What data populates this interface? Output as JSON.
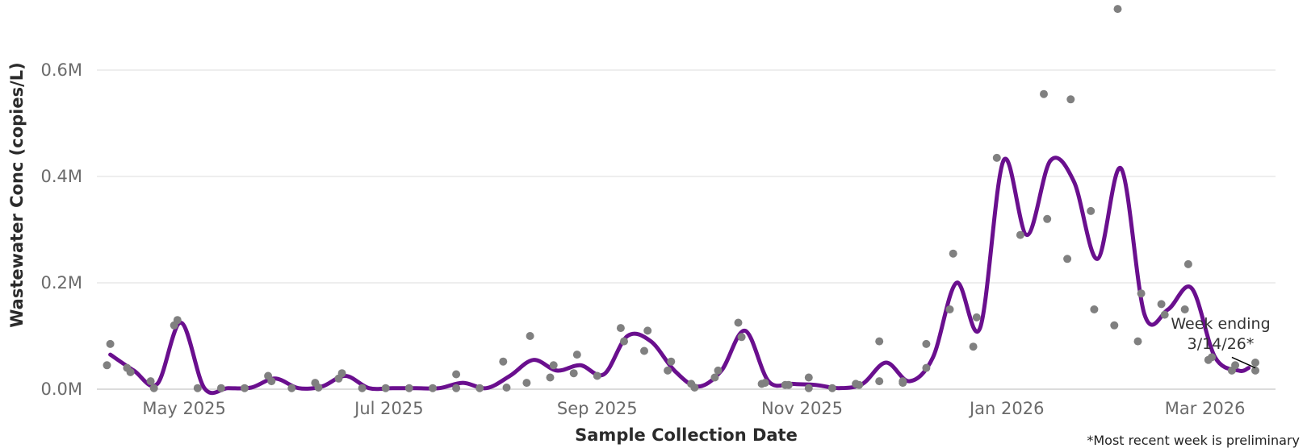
{
  "chart_data": {
    "type": "line",
    "xlabel": "Sample Collection Date",
    "ylabel": "Wastewater Conc (copies/L)",
    "ylim": [
      0,
      700000
    ],
    "xlim": [
      "2025-04-05",
      "2026-03-22"
    ],
    "y_ticks": [
      {
        "value": 0,
        "label": "0.0M"
      },
      {
        "value": 200000,
        "label": "0.2M"
      },
      {
        "value": 400000,
        "label": "0.4M"
      },
      {
        "value": 600000,
        "label": "0.6M"
      }
    ],
    "x_ticks": [
      {
        "date": "2025-05-01",
        "label": "May 2025"
      },
      {
        "date": "2025-07-01",
        "label": "Jul 2025"
      },
      {
        "date": "2025-09-01",
        "label": "Sep 2025"
      },
      {
        "date": "2025-11-01",
        "label": "Nov 2025"
      },
      {
        "date": "2026-01-01",
        "label": "Jan 2026"
      },
      {
        "date": "2026-03-01",
        "label": "Mar 2026"
      }
    ],
    "grid": "horizontal",
    "colors": {
      "line": "#6a0f8e",
      "points": "#808080",
      "grid": "#e8e8e8"
    },
    "series": [
      {
        "type": "line",
        "x": [
          "2025-04-09",
          "2025-04-16",
          "2025-04-23",
          "2025-04-30",
          "2025-05-07",
          "2025-05-14",
          "2025-05-21",
          "2025-05-28",
          "2025-06-04",
          "2025-06-11",
          "2025-06-18",
          "2025-06-25",
          "2025-07-02",
          "2025-07-09",
          "2025-07-16",
          "2025-07-23",
          "2025-07-30",
          "2025-08-06",
          "2025-08-13",
          "2025-08-20",
          "2025-08-27",
          "2025-09-03",
          "2025-09-10",
          "2025-09-17",
          "2025-09-24",
          "2025-10-01",
          "2025-10-08",
          "2025-10-15",
          "2025-10-22",
          "2025-10-29",
          "2025-11-05",
          "2025-11-12",
          "2025-11-19",
          "2025-11-26",
          "2025-12-03",
          "2025-12-10",
          "2025-12-17",
          "2025-12-24",
          "2025-12-31",
          "2026-01-07",
          "2026-01-14",
          "2026-01-21",
          "2026-01-28",
          "2026-02-04",
          "2026-02-11",
          "2026-02-18",
          "2026-02-25",
          "2026-03-04",
          "2026-03-11",
          "2026-03-14"
        ],
        "values": [
          65000,
          35000,
          10000,
          125000,
          2000,
          2000,
          3000,
          20000,
          2000,
          5000,
          25000,
          2000,
          2000,
          2000,
          2000,
          12000,
          2000,
          25000,
          55000,
          35000,
          45000,
          28000,
          100000,
          90000,
          35000,
          5000,
          35000,
          110000,
          15000,
          10000,
          8000,
          2000,
          10000,
          50000,
          15000,
          60000,
          200000,
          115000,
          430000,
          290000,
          430000,
          390000,
          245000,
          415000,
          140000,
          150000,
          190000,
          60000,
          35000,
          40000
        ]
      },
      {
        "type": "scatter",
        "points": [
          [
            "2025-04-08",
            45000
          ],
          [
            "2025-04-09",
            85000
          ],
          [
            "2025-04-14",
            40000
          ],
          [
            "2025-04-15",
            32000
          ],
          [
            "2025-04-21",
            15000
          ],
          [
            "2025-04-22",
            2000
          ],
          [
            "2025-04-28",
            120000
          ],
          [
            "2025-04-29",
            130000
          ],
          [
            "2025-05-05",
            2000
          ],
          [
            "2025-05-12",
            2000
          ],
          [
            "2025-05-19",
            2000
          ],
          [
            "2025-05-26",
            25000
          ],
          [
            "2025-05-27",
            15000
          ],
          [
            "2025-06-02",
            2000
          ],
          [
            "2025-06-09",
            12000
          ],
          [
            "2025-06-10",
            3000
          ],
          [
            "2025-06-16",
            20000
          ],
          [
            "2025-06-17",
            30000
          ],
          [
            "2025-06-23",
            2000
          ],
          [
            "2025-06-30",
            2000
          ],
          [
            "2025-07-07",
            2000
          ],
          [
            "2025-07-14",
            2000
          ],
          [
            "2025-07-21",
            28000
          ],
          [
            "2025-07-21",
            2000
          ],
          [
            "2025-07-28",
            2000
          ],
          [
            "2025-08-04",
            52000
          ],
          [
            "2025-08-05",
            3000
          ],
          [
            "2025-08-11",
            12000
          ],
          [
            "2025-08-12",
            100000
          ],
          [
            "2025-08-18",
            22000
          ],
          [
            "2025-08-19",
            45000
          ],
          [
            "2025-08-25",
            30000
          ],
          [
            "2025-08-26",
            65000
          ],
          [
            "2025-09-01",
            25000
          ],
          [
            "2025-09-08",
            115000
          ],
          [
            "2025-09-09",
            90000
          ],
          [
            "2025-09-15",
            72000
          ],
          [
            "2025-09-16",
            110000
          ],
          [
            "2025-09-22",
            35000
          ],
          [
            "2025-09-23",
            52000
          ],
          [
            "2025-09-29",
            10000
          ],
          [
            "2025-09-30",
            3000
          ],
          [
            "2025-10-06",
            22000
          ],
          [
            "2025-10-07",
            35000
          ],
          [
            "2025-10-13",
            125000
          ],
          [
            "2025-10-14",
            98000
          ],
          [
            "2025-10-20",
            10000
          ],
          [
            "2025-10-21",
            12000
          ],
          [
            "2025-10-27",
            8000
          ],
          [
            "2025-10-28",
            8000
          ],
          [
            "2025-11-03",
            22000
          ],
          [
            "2025-11-03",
            2000
          ],
          [
            "2025-11-10",
            2000
          ],
          [
            "2025-11-17",
            10000
          ],
          [
            "2025-11-18",
            8000
          ],
          [
            "2025-11-24",
            90000
          ],
          [
            "2025-11-24",
            15000
          ],
          [
            "2025-12-01",
            15000
          ],
          [
            "2025-12-01",
            12000
          ],
          [
            "2025-12-08",
            40000
          ],
          [
            "2025-12-08",
            85000
          ],
          [
            "2025-12-15",
            150000
          ],
          [
            "2025-12-16",
            255000
          ],
          [
            "2025-12-22",
            80000
          ],
          [
            "2025-12-23",
            135000
          ],
          [
            "2025-12-29",
            435000
          ],
          [
            "2026-01-05",
            290000
          ],
          [
            "2026-01-12",
            555000
          ],
          [
            "2026-01-13",
            320000
          ],
          [
            "2026-01-19",
            245000
          ],
          [
            "2026-01-20",
            545000
          ],
          [
            "2026-01-26",
            335000
          ],
          [
            "2026-01-27",
            150000
          ],
          [
            "2026-02-02",
            120000
          ],
          [
            "2026-02-03",
            715000
          ],
          [
            "2026-02-09",
            90000
          ],
          [
            "2026-02-10",
            180000
          ],
          [
            "2026-02-16",
            160000
          ],
          [
            "2026-02-17",
            140000
          ],
          [
            "2026-02-23",
            150000
          ],
          [
            "2026-02-24",
            235000
          ],
          [
            "2026-03-02",
            55000
          ],
          [
            "2026-03-03",
            60000
          ],
          [
            "2026-03-09",
            35000
          ],
          [
            "2026-03-10",
            45000
          ],
          [
            "2026-03-16",
            50000
          ],
          [
            "2026-03-16",
            35000
          ]
        ]
      }
    ],
    "annotation": {
      "line1": "Week ending",
      "line2": "3/14/26*",
      "date": "2026-03-09",
      "value": 60000,
      "target_date": "2026-03-16",
      "target_value": 40000
    },
    "footnote": "*Most recent week is preliminary"
  }
}
